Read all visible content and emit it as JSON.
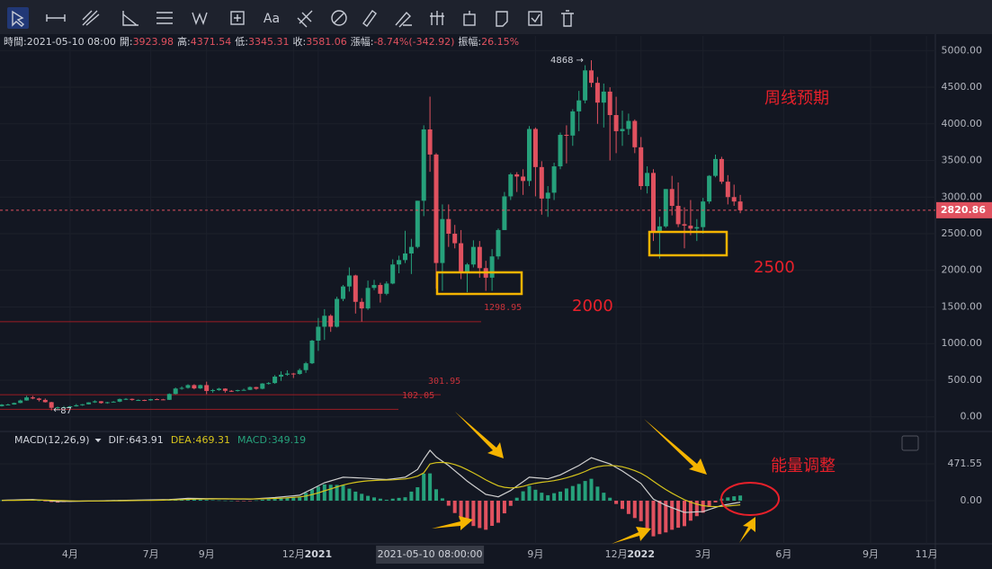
{
  "toolbar": {
    "text_tool": "Aa"
  },
  "info": {
    "time_label": "時間:",
    "time": "2021-05-10 08:00",
    "open_label": "開:",
    "high_label": "高:",
    "low_label": "低:",
    "close_label": "收:",
    "change_label": "漲幅:",
    "change": "-8.74%(-342.92)",
    "amplitude_label": "振幅:",
    "amplitude": "26.15%"
  },
  "chart_data": [
    {
      "type": "candlestick",
      "up_color": "#26a17b",
      "down_color": "#e0515f",
      "open": [
        145,
        167,
        168,
        189,
        223,
        265,
        250,
        231,
        200,
        123,
        131,
        131,
        143,
        158,
        171,
        197,
        212,
        188,
        199,
        207,
        243,
        245,
        230,
        230,
        225,
        241,
        238,
        232,
        312,
        386,
        395,
        433,
        388,
        433,
        353,
        365,
        385,
        355,
        353,
        365,
        368,
        406,
        383,
        455,
        461,
        549,
        575,
        591,
        585,
        638,
        731,
        1040,
        1230,
        1380,
        1230,
        1610,
        1780,
        1930,
        1570,
        1480,
        1760,
        1800,
        1680,
        1820,
        2080,
        2140,
        2230,
        2320,
        2950,
        3923.98,
        3581.06,
        2100,
        2700,
        2500,
        2370,
        1970,
        2080,
        2320,
        2030,
        1900,
        2190,
        2550,
        3010,
        3310,
        3280,
        3220,
        3930,
        3410,
        2980,
        3060,
        3420,
        3850,
        3840,
        4170,
        4320,
        4730,
        4560,
        4290,
        4440,
        4120,
        3900,
        3930,
        4040,
        3680,
        3150,
        3330,
        2530,
        2600,
        3110,
        2880,
        2630,
        2610,
        2570,
        2590,
        2940,
        3290,
        3520,
        3210,
        3000,
        2940
      ],
      "high": [
        175,
        180,
        195,
        235,
        288,
        285,
        260,
        250,
        205,
        140,
        147,
        150,
        175,
        175,
        200,
        225,
        215,
        205,
        215,
        250,
        255,
        250,
        238,
        235,
        245,
        250,
        245,
        320,
        400,
        415,
        445,
        445,
        440,
        480,
        380,
        395,
        390,
        365,
        370,
        385,
        415,
        410,
        460,
        475,
        570,
        620,
        635,
        600,
        660,
        750,
        1050,
        1350,
        1470,
        1400,
        1640,
        1800,
        2040,
        1940,
        1620,
        1860,
        1870,
        1830,
        1850,
        2150,
        2200,
        2540,
        2430,
        2950,
        3980,
        4371.54,
        3600,
        2900,
        2900,
        2620,
        2550,
        2100,
        2410,
        2400,
        2130,
        2290,
        2570,
        3070,
        3330,
        3340,
        3380,
        3970,
        3950,
        3490,
        3150,
        3470,
        3880,
        3980,
        4200,
        4450,
        4800,
        4868,
        4640,
        4550,
        4500,
        4370,
        4180,
        4140,
        4060,
        3820,
        3420,
        3380,
        2730,
        3110,
        3290,
        3200,
        2860,
        2960,
        2700,
        2990,
        3300,
        3580,
        3550,
        3300,
        3170,
        3030
      ],
      "low": [
        140,
        158,
        165,
        185,
        220,
        240,
        210,
        195,
        87,
        108,
        125,
        125,
        140,
        150,
        168,
        190,
        180,
        178,
        195,
        200,
        230,
        220,
        220,
        215,
        220,
        235,
        228,
        230,
        305,
        370,
        385,
        375,
        380,
        310,
        330,
        355,
        330,
        340,
        345,
        360,
        365,
        370,
        375,
        440,
        450,
        490,
        560,
        530,
        575,
        600,
        720,
        900,
        1050,
        1160,
        1220,
        1580,
        1710,
        1410,
        1300,
        1460,
        1730,
        1560,
        1660,
        1810,
        1960,
        2100,
        1950,
        2300,
        2740,
        3345.31,
        1750,
        1720,
        2320,
        2300,
        1880,
        1700,
        2040,
        1900,
        1720,
        1720,
        2150,
        2550,
        2960,
        3070,
        3030,
        3150,
        3010,
        2760,
        2730,
        2960,
        3380,
        3460,
        3700,
        3900,
        4280,
        4500,
        4000,
        3950,
        3500,
        3600,
        3700,
        3850,
        3600,
        3100,
        3050,
        2400,
        2160,
        2580,
        2750,
        2590,
        2300,
        2480,
        2400,
        2500,
        2910,
        3270,
        3180,
        2900,
        2880,
        2780
      ],
      "close": [
        167,
        168,
        189,
        223,
        265,
        250,
        231,
        200,
        123,
        131,
        131,
        143,
        158,
        171,
        197,
        212,
        188,
        199,
        207,
        243,
        245,
        230,
        230,
        225,
        241,
        238,
        232,
        312,
        386,
        395,
        433,
        388,
        433,
        353,
        365,
        385,
        355,
        353,
        365,
        368,
        406,
        383,
        455,
        461,
        549,
        575,
        591,
        585,
        638,
        731,
        1040,
        1230,
        1380,
        1230,
        1610,
        1780,
        1930,
        1570,
        1480,
        1760,
        1800,
        1680,
        1820,
        2080,
        2140,
        2230,
        2320,
        2950,
        3923.98,
        3581.06,
        2100,
        2700,
        2500,
        2370,
        1970,
        2080,
        2320,
        2030,
        1900,
        2190,
        2550,
        3010,
        3310,
        3280,
        3220,
        3930,
        3410,
        2980,
        3060,
        3420,
        3850,
        3840,
        4170,
        4320,
        4730,
        4560,
        4290,
        4440,
        4120,
        3900,
        3930,
        4040,
        3680,
        3150,
        3330,
        2530,
        2600,
        3110,
        2880,
        2630,
        2610,
        2570,
        2590,
        2940,
        3290,
        3520,
        3210,
        3000,
        2940,
        2820.86
      ],
      "ylim": [
        -200,
        5200
      ],
      "yticks": [
        {
          "value": 0,
          "label": "0.00"
        },
        {
          "value": 500,
          "label": "500.00"
        },
        {
          "value": 1000,
          "label": "1000.00"
        },
        {
          "value": 1500,
          "label": "1500.00"
        },
        {
          "value": 2000,
          "label": "2000.00"
        },
        {
          "value": 2500,
          "label": "2500.00"
        },
        {
          "value": 3000,
          "label": "3000.00"
        },
        {
          "value": 3500,
          "label": "3500.00"
        },
        {
          "value": 4000,
          "label": "4000.00"
        },
        {
          "value": 4500,
          "label": "4500.00"
        },
        {
          "value": 5000,
          "label": "5000.00"
        }
      ],
      "last_price": 2820.86,
      "price_lines": [
        1298.95,
        301.95,
        102.05
      ],
      "annotations": [
        "周线预期",
        "2500",
        "2000",
        "能量调整"
      ],
      "xticks": [
        {
          "value": 11,
          "label": "4月"
        },
        {
          "value": 24,
          "label": "7月"
        },
        {
          "value": 33,
          "label": "9月"
        },
        {
          "value": 47,
          "label": "12月"
        },
        {
          "value": 51,
          "label": "2021"
        },
        {
          "value": 86,
          "label": "9月"
        },
        {
          "value": 99,
          "label": "12月"
        },
        {
          "value": 103,
          "label": "2022"
        },
        {
          "value": 113,
          "label": "3月"
        },
        {
          "value": 126,
          "label": "6月"
        },
        {
          "value": 140,
          "label": "9月"
        },
        {
          "value": 149,
          "label": "11月"
        }
      ],
      "crosshair": {
        "value": 69,
        "label": "2021-05-10 08:00:00"
      }
    },
    {
      "type": "macd",
      "title": "MACD(12,26,9)",
      "up_color": "#26a17b",
      "down_color": "#e0515f",
      "ylim": [
        -552,
        828
      ],
      "yticks": [
        {
          "value": 0,
          "label": "0.00"
        },
        471.55
      ],
      "series": [
        {
          "name": "DIF",
          "color": "#cfcfcf",
          "values": [
            5,
            7,
            9,
            11,
            13,
            15,
            9,
            3,
            -4,
            -10,
            -9,
            -9,
            -8,
            -6,
            -5,
            -3,
            -2,
            0,
            2,
            4,
            5,
            6,
            8,
            9,
            10,
            12,
            13,
            15,
            20,
            25,
            30,
            29,
            28,
            27,
            26,
            25,
            24,
            23,
            22,
            21,
            20,
            25,
            30,
            35,
            40,
            48,
            55,
            62,
            70,
            110,
            150,
            190,
            230,
            253,
            277,
            300,
            297,
            293,
            290,
            285,
            280,
            275,
            270,
            280,
            290,
            300,
            350,
            400,
            530,
            643.91,
            560,
            505,
            450,
            383,
            317,
            250,
            193,
            137,
            80,
            65,
            50,
            90,
            130,
            187,
            243,
            300,
            293,
            287,
            280,
            305,
            330,
            370,
            410,
            450,
            500,
            550,
            523,
            497,
            470,
            425,
            380,
            327,
            273,
            220,
            120,
            20,
            -20,
            -60,
            -90,
            -120,
            -150,
            -147,
            -143,
            -140,
            -113,
            -87,
            -60,
            -47,
            -33,
            -20
          ]
        },
        {
          "name": "DEA",
          "color": "#d6c41c",
          "values": [
            3,
            4,
            5,
            6,
            7,
            8,
            8,
            7,
            5,
            2,
            0,
            -2,
            -3,
            -4,
            -4,
            -4,
            -4,
            -3,
            -2,
            -1,
            0,
            1,
            2,
            3,
            4,
            6,
            7,
            9,
            11,
            14,
            17,
            19,
            21,
            22,
            23,
            23,
            23,
            23,
            23,
            23,
            22,
            23,
            24,
            26,
            29,
            32,
            37,
            42,
            48,
            60,
            78,
            100,
            126,
            151,
            176,
            200,
            220,
            235,
            246,
            254,
            259,
            262,
            264,
            267,
            272,
            278,
            292,
            314,
            357,
            469.31,
            487,
            490,
            482,
            462,
            433,
            396,
            355,
            312,
            266,
            226,
            191,
            171,
            163,
            168,
            183,
            206,
            223,
            236,
            245,
            257,
            272,
            292,
            316,
            343,
            374,
            410,
            433,
            446,
            451,
            446,
            433,
            412,
            384,
            351,
            305,
            248,
            194,
            143,
            96,
            53,
            13,
            -19,
            -44,
            -63,
            -73,
            -76,
            -73,
            -68,
            -61,
            -53
          ]
        },
        {
          "name": "MACD",
          "color": "#26a17b",
          "values": [
            4,
            6,
            8,
            10,
            12,
            14,
            2,
            -8,
            -18,
            -24,
            -18,
            -14,
            -10,
            -4,
            -2,
            2,
            4,
            6,
            8,
            10,
            10,
            10,
            12,
            12,
            12,
            12,
            12,
            12,
            18,
            22,
            26,
            20,
            14,
            10,
            6,
            4,
            2,
            0,
            -2,
            -4,
            -4,
            4,
            12,
            18,
            22,
            32,
            36,
            40,
            44,
            100,
            144,
            180,
            208,
            204,
            202,
            200,
            154,
            116,
            88,
            62,
            42,
            26,
            12,
            26,
            36,
            44,
            116,
            172,
            346,
            349.19,
            146,
            30,
            -64,
            -158,
            -232,
            -292,
            -324,
            -350,
            -372,
            -322,
            -282,
            -162,
            -66,
            38,
            120,
            188,
            140,
            102,
            70,
            96,
            116,
            156,
            188,
            214,
            252,
            280,
            180,
            102,
            38,
            -42,
            -106,
            -170,
            -222,
            -262,
            -370,
            -456,
            -428,
            -406,
            -372,
            -346,
            -326,
            -256,
            -198,
            -154,
            -80,
            -22,
            26,
            42,
            56,
            66
          ]
        }
      ]
    }
  ]
}
